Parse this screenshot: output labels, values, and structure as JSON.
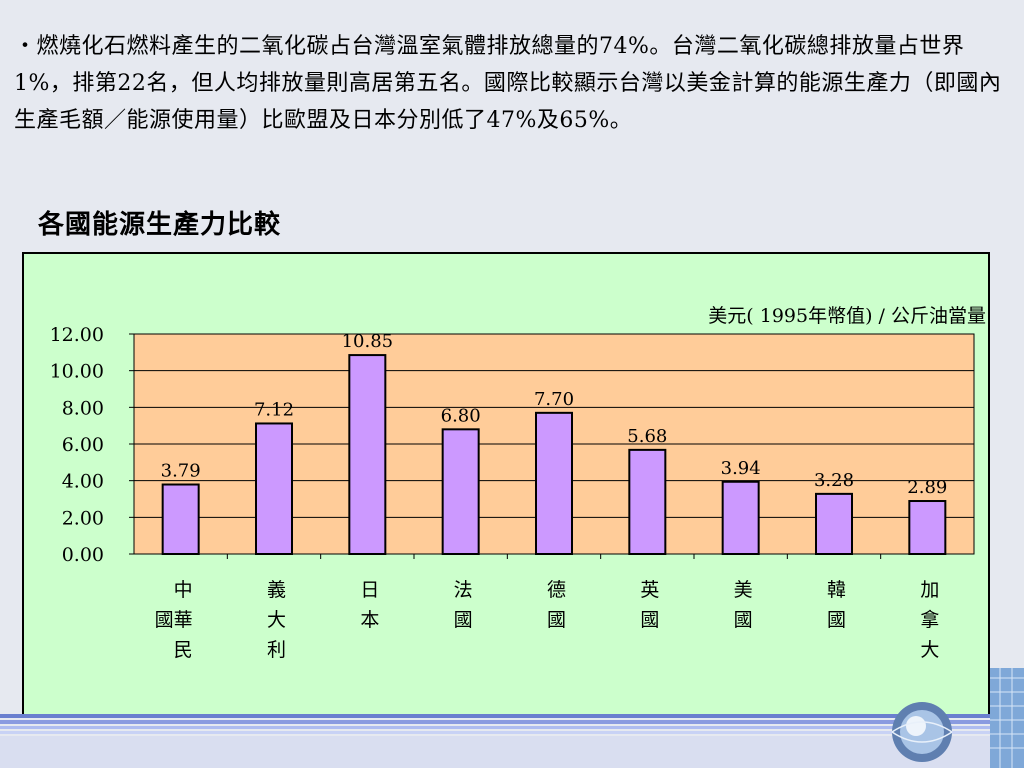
{
  "slide": {
    "intro_text": "・燃燒化石燃料產生的二氧化碳占台灣溫室氣體排放總量的74%。台灣二氧化碳總排放量占世界1%，排第22名，但人均排放量則高居第五名。國際比較顯示台灣以美金計算的能源生產力（即國內生產毛額／能源使用量）比歐盟及日本分別低了47%及65%。",
    "chart_heading": "各國能源生產力比較"
  },
  "chart_data": {
    "type": "bar",
    "title": "",
    "unit_label": "美元( 1995年幣值) / 公斤油當量",
    "categories": [
      "中華民國",
      "義大利",
      "日本",
      "法國",
      "德國",
      "英國",
      "美國",
      "韓國",
      "加拿大"
    ],
    "category_lines": [
      [
        "中",
        "國華",
        "民"
      ],
      [
        "義",
        "大",
        "利"
      ],
      [
        "日",
        "本"
      ],
      [
        "法",
        "國"
      ],
      [
        "德",
        "國"
      ],
      [
        "英",
        "國"
      ],
      [
        "美",
        "國"
      ],
      [
        "韓",
        "國"
      ],
      [
        "加",
        "拿",
        "大"
      ]
    ],
    "values": [
      3.79,
      7.12,
      10.85,
      6.8,
      7.7,
      5.68,
      3.94,
      3.28,
      2.89
    ],
    "value_labels": [
      "3.79",
      "7.12",
      "10.85",
      "6.80",
      "7.70",
      "5.68",
      "3.94",
      "3.28",
      "2.89"
    ],
    "ylim": [
      0,
      12
    ],
    "yticks": [
      "0.00",
      "2.00",
      "4.00",
      "6.00",
      "8.00",
      "10.00",
      "12.00"
    ],
    "grid": true,
    "legend": "none",
    "colors": {
      "bar_fill": "#cc99ff",
      "plot_background": "#ffcc99",
      "frame_background": "#ccffcc"
    }
  }
}
